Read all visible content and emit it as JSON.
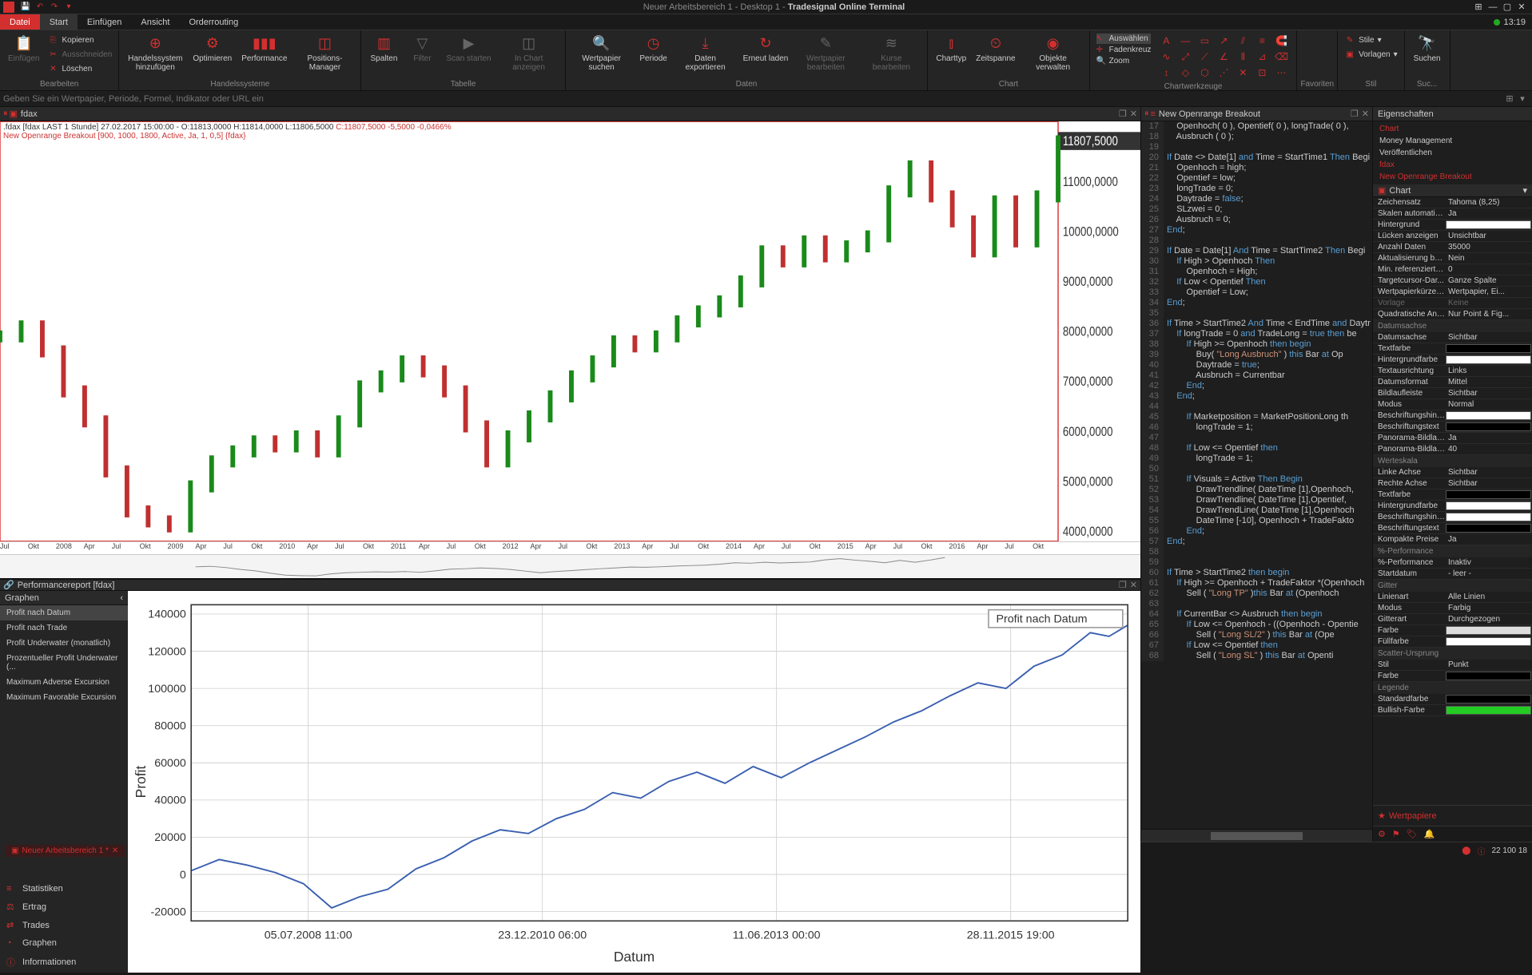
{
  "titlebar": {
    "title_prefix": "Neuer Arbeitsbereich 1 - Desktop 1 - ",
    "title_app": "Tradesignal Online Terminal"
  },
  "menu": {
    "file": "Datei",
    "items": [
      "Start",
      "Einfügen",
      "Ansicht",
      "Orderrouting"
    ],
    "clock": "13:19"
  },
  "ribbon": {
    "clipboard": {
      "paste": "Einfügen",
      "copy": "Kopieren",
      "cut": "Ausschneiden",
      "delete": "Löschen",
      "group": "Bearbeiten"
    },
    "systems": {
      "add": "Handelssystem\nhinzufügen",
      "optimize": "Optimieren",
      "performance": "Performance",
      "posmgr": "Positions-Manager",
      "group": "Handelssysteme"
    },
    "table": {
      "columns": "Spalten",
      "filter": "Filter",
      "scan": "Scan starten",
      "inchart": "In Chart\nanzeigen",
      "group": "Tabelle"
    },
    "data": {
      "wpsearch": "Wertpapier\nsuchen",
      "period": "Periode",
      "export": "Daten\nexportieren",
      "reload": "Erneut\nladen",
      "wpedit": "Wertpapier\nbearbeiten",
      "kurse": "Kurse\nbearbeiten",
      "group": "Daten"
    },
    "chart": {
      "charttype": "Charttyp",
      "timespan": "Zeitspanne",
      "objects": "Objekte\nverwalten",
      "group": "Chart"
    },
    "tools": {
      "select": "Auswählen",
      "crosshair": "Fadenkreuz",
      "zoom": "Zoom",
      "group": "Chartwerkzeuge"
    },
    "style": {
      "styles": "Stile",
      "templates": "Vorlagen",
      "group": "Stil"
    },
    "fav_group": "Favoriten",
    "search_grp": "Suc...",
    "search_label": "Suchen"
  },
  "searchbar": {
    "placeholder": "Geben Sie ein Wertpapier, Periode, Formel, Indikator oder URL ein"
  },
  "chart_tab": "fdax",
  "chart_header": {
    "line1_a": ".fdax [fdax LAST 1 Stunde] 27.02.2017 15:00:00 - O:11813,0000 H:11814,0000 L:11806,5000 ",
    "line1_c": "C:11807,5000 -5,5000 -0,0466%",
    "line2": "New Openrange Breakout [900, 1000, 1800, Active, Ja, 1, 0,5] {fdax}"
  },
  "price_chart": {
    "ylabels": [
      "11807,5000",
      "11000,0000",
      "10000,0000",
      "9000,0000",
      "8000,0000",
      "7000,0000",
      "6000,0000",
      "5000,0000",
      "4000,0000"
    ],
    "yvals": [
      11807.5,
      11000,
      10000,
      9000,
      8000,
      7000,
      6000,
      5000,
      4000
    ],
    "ymin": 3800,
    "ymax": 12200,
    "xlabels": [
      "Jul",
      "Okt",
      "2008",
      "Apr",
      "Jul",
      "Okt",
      "2009",
      "Apr",
      "Jul",
      "Okt",
      "2010",
      "Apr",
      "Jul",
      "Okt",
      "2011",
      "Apr",
      "Jul",
      "Okt",
      "2012",
      "Apr",
      "Jul",
      "Okt",
      "2013",
      "Apr",
      "Jul",
      "Okt",
      "2014",
      "Apr",
      "Jul",
      "Okt",
      "2015",
      "Apr",
      "Jul",
      "Okt",
      "2016",
      "Apr",
      "Jul",
      "Okt"
    ],
    "up_color": "#1a8a1a",
    "down_color": "#c03030",
    "series": [
      [
        0,
        7900
      ],
      [
        2,
        8100
      ],
      [
        4,
        7600
      ],
      [
        6,
        6800
      ],
      [
        8,
        6200
      ],
      [
        10,
        5200
      ],
      [
        12,
        4400
      ],
      [
        14,
        4200
      ],
      [
        16,
        4100
      ],
      [
        18,
        4900
      ],
      [
        20,
        5400
      ],
      [
        22,
        5600
      ],
      [
        24,
        5800
      ],
      [
        26,
        5700
      ],
      [
        28,
        5900
      ],
      [
        30,
        5600
      ],
      [
        32,
        6200
      ],
      [
        34,
        6900
      ],
      [
        36,
        7100
      ],
      [
        38,
        7400
      ],
      [
        40,
        7200
      ],
      [
        42,
        6800
      ],
      [
        44,
        6100
      ],
      [
        46,
        5400
      ],
      [
        48,
        5900
      ],
      [
        50,
        6300
      ],
      [
        52,
        6700
      ],
      [
        54,
        7100
      ],
      [
        56,
        7400
      ],
      [
        58,
        7800
      ],
      [
        60,
        7700
      ],
      [
        62,
        7900
      ],
      [
        64,
        8200
      ],
      [
        66,
        8400
      ],
      [
        68,
        8600
      ],
      [
        70,
        9000
      ],
      [
        72,
        9600
      ],
      [
        74,
        9400
      ],
      [
        76,
        9800
      ],
      [
        78,
        9500
      ],
      [
        80,
        9700
      ],
      [
        82,
        9900
      ],
      [
        84,
        10800
      ],
      [
        86,
        11300
      ],
      [
        88,
        10700
      ],
      [
        90,
        10200
      ],
      [
        92,
        9600
      ],
      [
        94,
        10600
      ],
      [
        96,
        9800
      ],
      [
        98,
        10700
      ],
      [
        100,
        11800
      ]
    ]
  },
  "perf_tab": "Performancereport [fdax]",
  "perf_sidebar": {
    "header": "Graphen",
    "items": [
      "Profit nach Datum",
      "Profit nach Trade",
      "Profit Underwater (monatlich)",
      "Prozentueller Profit Underwater (...",
      "Maximum Adverse Excursion",
      "Maximum Favorable Excursion"
    ],
    "active_idx": 0,
    "bottom": [
      {
        "icon": "≡",
        "label": "Statistiken"
      },
      {
        "icon": "⚖",
        "label": "Ertrag"
      },
      {
        "icon": "⇄",
        "label": "Trades"
      },
      {
        "icon": "◔",
        "label": "Graphen"
      },
      {
        "icon": "ⓘ",
        "label": "Informationen"
      }
    ]
  },
  "perf_chart": {
    "legend": "Profit nach Datum",
    "ylabel": "Profit",
    "xlabel": "Datum",
    "ylabels": [
      "140000",
      "120000",
      "100000",
      "80000",
      "60000",
      "40000",
      "20000",
      "0",
      "-20000"
    ],
    "yvals": [
      140000,
      120000,
      100000,
      80000,
      60000,
      40000,
      20000,
      0,
      -20000
    ],
    "ymin": -25000,
    "ymax": 145000,
    "xlabels": [
      "05.07.2008 11:00",
      "23.12.2010 06:00",
      "11.06.2013 00:00",
      "28.11.2015 19:00"
    ],
    "line_color": "#3a5fb0",
    "series": [
      [
        0,
        2000
      ],
      [
        3,
        8000
      ],
      [
        6,
        5000
      ],
      [
        9,
        1000
      ],
      [
        12,
        -5000
      ],
      [
        15,
        -18000
      ],
      [
        18,
        -12000
      ],
      [
        21,
        -8000
      ],
      [
        24,
        3000
      ],
      [
        27,
        9000
      ],
      [
        30,
        18000
      ],
      [
        33,
        24000
      ],
      [
        36,
        22000
      ],
      [
        39,
        30000
      ],
      [
        42,
        35000
      ],
      [
        45,
        44000
      ],
      [
        48,
        41000
      ],
      [
        51,
        50000
      ],
      [
        54,
        55000
      ],
      [
        57,
        49000
      ],
      [
        60,
        58000
      ],
      [
        63,
        52000
      ],
      [
        66,
        60000
      ],
      [
        69,
        67000
      ],
      [
        72,
        74000
      ],
      [
        75,
        82000
      ],
      [
        78,
        88000
      ],
      [
        81,
        96000
      ],
      [
        84,
        103000
      ],
      [
        87,
        100000
      ],
      [
        90,
        112000
      ],
      [
        93,
        118000
      ],
      [
        96,
        130000
      ],
      [
        98,
        128000
      ],
      [
        100,
        134000
      ]
    ]
  },
  "code_tab": "New Openrange Breakout",
  "code": [
    {
      "n": 17,
      "t": "    Openhoch( 0 ), Opentief( 0 ), longTrade( 0 ),"
    },
    {
      "n": 18,
      "t": "    Ausbruch ( 0 );"
    },
    {
      "n": 19,
      "t": ""
    },
    {
      "n": 20,
      "t": "If Date <> Date[1] and Time = StartTime1 Then Begi"
    },
    {
      "n": 21,
      "t": "    Openhoch = high;"
    },
    {
      "n": 22,
      "t": "    Opentief = low;"
    },
    {
      "n": 23,
      "t": "    longTrade = 0;"
    },
    {
      "n": 24,
      "t": "    Daytrade = false;"
    },
    {
      "n": 25,
      "t": "    SLzwei = 0;"
    },
    {
      "n": 26,
      "t": "    Ausbruch = 0;"
    },
    {
      "n": 27,
      "t": "End;"
    },
    {
      "n": 28,
      "t": ""
    },
    {
      "n": 29,
      "t": "If Date = Date[1] And Time = StartTime2 Then Begi"
    },
    {
      "n": 30,
      "t": "    If High > Openhoch Then"
    },
    {
      "n": 31,
      "t": "        Openhoch = High;"
    },
    {
      "n": 32,
      "t": "    If Low < Opentief Then"
    },
    {
      "n": 33,
      "t": "        Opentief = Low;"
    },
    {
      "n": 34,
      "t": "End;"
    },
    {
      "n": 35,
      "t": ""
    },
    {
      "n": 36,
      "t": "If Time > StartTime2 And Time < EndTime and Daytr"
    },
    {
      "n": 37,
      "t": "    If longTrade = 0 and TradeLong = true then be"
    },
    {
      "n": 38,
      "t": "        If High >= Openhoch then begin"
    },
    {
      "n": 39,
      "t": "            Buy( \"Long Ausbruch\" ) this Bar at Op"
    },
    {
      "n": 40,
      "t": "            Daytrade = true;"
    },
    {
      "n": 41,
      "t": "            Ausbruch = Currentbar"
    },
    {
      "n": 42,
      "t": "        End;"
    },
    {
      "n": 43,
      "t": "    End;"
    },
    {
      "n": 44,
      "t": ""
    },
    {
      "n": 45,
      "t": "        If Marketposition = MarketPositionLong th"
    },
    {
      "n": 46,
      "t": "            longTrade = 1;"
    },
    {
      "n": 47,
      "t": ""
    },
    {
      "n": 48,
      "t": "        If Low <= Opentief then"
    },
    {
      "n": 49,
      "t": "            longTrade = 1;"
    },
    {
      "n": 50,
      "t": ""
    },
    {
      "n": 51,
      "t": "        If Visuals = Active Then Begin"
    },
    {
      "n": 52,
      "t": "            DrawTrendline( DateTime [1],Openhoch,"
    },
    {
      "n": 53,
      "t": "            DrawTrendline( DateTime [1],Opentief,"
    },
    {
      "n": 54,
      "t": "            DrawTrendLine( DateTime [1],Openhoch"
    },
    {
      "n": 55,
      "t": "            DateTime [-10], Openhoch + TradeFakto"
    },
    {
      "n": 56,
      "t": "        End;"
    },
    {
      "n": 57,
      "t": "End;"
    },
    {
      "n": 58,
      "t": ""
    },
    {
      "n": 59,
      "t": ""
    },
    {
      "n": 60,
      "t": "If Time > StartTime2 then begin"
    },
    {
      "n": 61,
      "t": "    If High >= Openhoch + TradeFaktor *(Openhoch"
    },
    {
      "n": 62,
      "t": "        Sell ( \"Long TP\" )this Bar at (Openhoch"
    },
    {
      "n": 63,
      "t": ""
    },
    {
      "n": 64,
      "t": "    If CurrentBar <> Ausbruch then begin"
    },
    {
      "n": 65,
      "t": "        If Low <= Openhoch - ((Openhoch - Opentie"
    },
    {
      "n": 66,
      "t": "            Sell ( \"Long SL/2\" ) this Bar at (Ope"
    },
    {
      "n": 67,
      "t": "        If Low <= Opentief then"
    },
    {
      "n": 68,
      "t": "            Sell ( \"Long SL\" ) this Bar at Openti"
    }
  ],
  "props": {
    "header": "Eigenschaften",
    "tree": [
      {
        "label": "Chart",
        "active": true
      },
      {
        "label": "Money Management"
      },
      {
        "label": "Veröffentlichen"
      },
      {
        "label": "fdax",
        "red": true
      },
      {
        "label": "New Openrange Breakout",
        "red": true
      }
    ],
    "dropdown": "Chart",
    "groups": [
      {
        "rows": [
          {
            "k": "Zeichensatz",
            "v": "Tahoma (8,25)"
          },
          {
            "k": "Skalen automatisc...",
            "v": "Ja"
          },
          {
            "k": "Hintergrund",
            "sw": "#ffffff"
          },
          {
            "k": "Lücken anzeigen",
            "v": "Unsichtbar"
          },
          {
            "k": "Anzahl Daten",
            "v": "35000"
          },
          {
            "k": "Aktualisierung bei...",
            "v": "Nein"
          },
          {
            "k": "Min. referenzierte...",
            "v": "0"
          },
          {
            "k": "Targetcursor-Dar...",
            "v": "Ganze Spalte"
          },
          {
            "k": "Wertpapierkürzel ...",
            "v": "Wertpapier, Ei..."
          },
          {
            "k": "Vorlage",
            "v": "Keine",
            "dim": true
          },
          {
            "k": "Quadratische Anz...",
            "v": "Nur Point & Fig..."
          }
        ]
      },
      {
        "title": "Datumsachse",
        "rows": [
          {
            "k": "Datumsachse",
            "v": "Sichtbar"
          },
          {
            "k": "Textfarbe",
            "sw": "#000000"
          },
          {
            "k": "Hintergrundfarbe",
            "sw": "#ffffff"
          },
          {
            "k": "Textausrichtung",
            "v": "Links"
          },
          {
            "k": "Datumsformat",
            "v": "Mittel"
          },
          {
            "k": "Bildlaufleiste",
            "v": "Sichtbar"
          },
          {
            "k": "Modus",
            "v": "Normal"
          },
          {
            "k": "Beschriftungshint...",
            "sw": "#ffffff"
          },
          {
            "k": "Beschriftungstext",
            "sw": "#000000"
          },
          {
            "k": "Panorama-Bildlauf...",
            "v": "Ja"
          },
          {
            "k": "Panorama-Bildlauf...",
            "v": "40"
          }
        ]
      },
      {
        "title": "Werteskala",
        "rows": [
          {
            "k": "Linke Achse",
            "v": "Sichtbar"
          },
          {
            "k": "Rechte Achse",
            "v": "Sichtbar"
          },
          {
            "k": "Textfarbe",
            "sw": "#000000"
          },
          {
            "k": "Hintergrundfarbe",
            "sw": "#ffffff"
          },
          {
            "k": "Beschriftungshint...",
            "sw": "#ffffff"
          },
          {
            "k": "Beschriftungstext",
            "sw": "#000000"
          },
          {
            "k": "Kompakte Preise",
            "v": "Ja"
          }
        ]
      },
      {
        "title": "%-Performance",
        "rows": [
          {
            "k": "%-Performance",
            "v": "Inaktiv"
          },
          {
            "k": "Startdatum",
            "v": "- leer -"
          }
        ]
      },
      {
        "title": "Gitter",
        "rows": [
          {
            "k": "Linienart",
            "v": "Alle Linien"
          },
          {
            "k": "Modus",
            "v": "Farbig"
          },
          {
            "k": "Gitterart",
            "v": "Durchgezogen"
          },
          {
            "k": "Farbe",
            "sw": "#dddddd"
          },
          {
            "k": "Füllfarbe",
            "sw": "#ffffff"
          }
        ]
      },
      {
        "title": "Scatter-Ursprung",
        "rows": [
          {
            "k": "Stil",
            "v": "Punkt"
          },
          {
            "k": "Farbe",
            "sw": "#000000"
          }
        ]
      },
      {
        "title": "Legende",
        "rows": [
          {
            "k": "Standardfarbe",
            "sw": "#000000"
          },
          {
            "k": "Bullish-Farbe",
            "sw": "#22cc22"
          }
        ]
      }
    ],
    "footer": "Wertpapiere"
  },
  "statusbar": {
    "workspace": "Neuer Arbeitsbereich 1 *",
    "counter": "22 100 18"
  }
}
